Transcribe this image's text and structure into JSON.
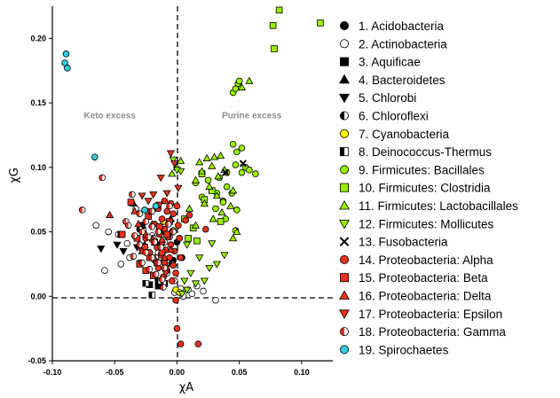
{
  "chart_data": {
    "type": "scatter",
    "xlabel": "χA",
    "ylabel": "χG",
    "xlim": [
      -0.1,
      0.125
    ],
    "ylim": [
      -0.05,
      0.225
    ],
    "xticks": [
      -0.1,
      -0.05,
      0.0,
      0.05,
      0.1
    ],
    "yticks": [
      -0.05,
      0.0,
      0.05,
      0.1,
      0.15,
      0.2
    ],
    "xtick_labels": [
      "-0.10",
      "-0.05",
      "0.00",
      "0.05",
      "0.10"
    ],
    "ytick_labels": [
      "-0.05",
      "0.00",
      "0.05",
      "0.10",
      "0.15",
      "0.20"
    ],
    "grid": false,
    "reference_lines": {
      "x": 0.0,
      "y": 0.0,
      "style": "dashed"
    },
    "annotations": [
      {
        "text": "Keto excess",
        "x": -0.054,
        "y": 0.138
      },
      {
        "text": "Purine excess",
        "x": 0.06,
        "y": 0.138
      }
    ],
    "legend_position": "right",
    "series": [
      {
        "name": "1. Acidobacteria",
        "marker": "circle",
        "fill": "#000000",
        "points": [
          [
            -0.003,
            0.028
          ],
          [
            -0.011,
            0.025
          ],
          [
            0.0,
            0.042
          ],
          [
            0.004,
            0.03
          ]
        ]
      },
      {
        "name": "2. Actinobacteria",
        "marker": "circle",
        "fill": "#ffffff",
        "points": [
          [
            -0.065,
            0.055
          ],
          [
            -0.055,
            0.05
          ],
          [
            -0.047,
            0.048
          ],
          [
            -0.04,
            0.041
          ],
          [
            -0.033,
            0.068
          ],
          [
            -0.027,
            0.052
          ],
          [
            -0.02,
            0.047
          ],
          [
            -0.045,
            0.025
          ],
          [
            -0.038,
            0.03
          ],
          [
            -0.03,
            0.026
          ],
          [
            -0.058,
            0.02
          ],
          [
            -0.012,
            0.025
          ],
          [
            -0.008,
            0.018
          ],
          [
            -0.002,
            0.012
          ],
          [
            0.003,
            0.006
          ],
          [
            0.009,
            0.005
          ],
          [
            0.016,
            0.008
          ],
          [
            0.021,
            0.004
          ],
          [
            0.031,
            -0.003
          ],
          [
            -0.015,
            0.034
          ],
          [
            0.005,
            0.0
          ],
          [
            -0.002,
            0.003
          ],
          [
            0.012,
            0.002
          ]
        ]
      },
      {
        "name": "3. Aquificae",
        "marker": "square",
        "fill": "#000000",
        "points": [
          [
            -0.045,
            0.048
          ],
          [
            -0.028,
            0.055
          ],
          [
            -0.022,
            0.009
          ],
          [
            -0.015,
            0.008
          ],
          [
            -0.01,
            0.01
          ]
        ]
      },
      {
        "name": "4. Bacteroidetes",
        "marker": "triangle-up",
        "fill": "#000000",
        "points": [
          [
            -0.035,
            0.072
          ],
          [
            -0.018,
            0.068
          ],
          [
            -0.013,
            0.05
          ],
          [
            -0.005,
            0.06
          ],
          [
            -0.026,
            0.04
          ]
        ]
      },
      {
        "name": "5. Chlorobi",
        "marker": "triangle-down",
        "fill": "#000000",
        "points": [
          [
            -0.061,
            0.037
          ],
          [
            -0.048,
            0.04
          ],
          [
            -0.043,
            0.035
          ],
          [
            -0.032,
            0.038
          ]
        ]
      },
      {
        "name": "6. Chloroflexi",
        "marker": "half-circle",
        "fill": "#000000",
        "points": [
          [
            -0.03,
            0.052
          ],
          [
            -0.019,
            0.045
          ],
          [
            -0.014,
            0.04
          ],
          [
            -0.01,
            0.042
          ],
          [
            -0.006,
            0.046
          ],
          [
            -0.017,
            0.03
          ],
          [
            -0.008,
            0.028
          ],
          [
            -0.004,
            0.025
          ]
        ]
      },
      {
        "name": "7. Cyanobacteria",
        "marker": "circle",
        "fill": "#ffff00",
        "points": [
          [
            -0.011,
            0.058
          ],
          [
            -0.003,
            0.051
          ],
          [
            -0.001,
            0.005
          ],
          [
            0.002,
            0.003
          ]
        ]
      },
      {
        "name": "8. Deinococcus-Thermus",
        "marker": "half-square",
        "fill": "#000000",
        "points": [
          [
            -0.025,
            0.01
          ],
          [
            -0.011,
            0.01
          ],
          [
            -0.02,
            0.001
          ],
          [
            -0.015,
            0.012
          ]
        ]
      },
      {
        "name": "9. Firmicutes: Bacillales",
        "marker": "circle",
        "fill": "#99ee00",
        "points": [
          [
            0.045,
            0.158
          ],
          [
            0.047,
            0.161
          ],
          [
            0.049,
            0.165
          ],
          [
            0.05,
            0.167
          ],
          [
            0.045,
            0.118
          ],
          [
            0.052,
            0.115
          ],
          [
            0.048,
            0.112
          ],
          [
            0.055,
            0.1
          ],
          [
            0.047,
            0.102
          ],
          [
            0.052,
            0.096
          ],
          [
            0.058,
            0.098
          ],
          [
            0.063,
            0.095
          ],
          [
            0.04,
            0.096
          ],
          [
            0.034,
            0.092
          ],
          [
            0.04,
            0.085
          ],
          [
            0.032,
            0.08
          ],
          [
            0.044,
            0.08
          ],
          [
            0.037,
            0.074
          ],
          [
            0.031,
            0.068
          ],
          [
            0.048,
            0.067
          ],
          [
            0.039,
            0.06
          ],
          [
            0.047,
            0.051
          ],
          [
            0.02,
            0.095
          ],
          [
            0.015,
            0.088
          ],
          [
            0.025,
            0.09
          ],
          [
            0.02,
            0.077
          ],
          [
            0.037,
            0.073
          ]
        ]
      },
      {
        "name": "10. Firmicutes: Clostridia",
        "marker": "square",
        "fill": "#99ee00",
        "points": [
          [
            0.082,
            0.222
          ],
          [
            0.077,
            0.21
          ],
          [
            0.078,
            0.192
          ],
          [
            0.115,
            0.212
          ],
          [
            0.02,
            0.095
          ],
          [
            0.013,
            0.053
          ],
          [
            0.028,
            0.082
          ],
          [
            0.035,
            0.058
          ],
          [
            0.009,
            0.045
          ],
          [
            0.022,
            0.075
          ],
          [
            0.006,
            0.06
          ],
          [
            0.016,
            0.043
          ]
        ]
      },
      {
        "name": "11. Firmicutes: Lactobacillales",
        "marker": "triangle-up",
        "fill": "#99ee00",
        "points": [
          [
            0.058,
            0.167
          ],
          [
            0.052,
            0.162
          ],
          [
            0.035,
            0.109
          ],
          [
            0.03,
            0.108
          ],
          [
            0.024,
            0.107
          ],
          [
            0.018,
            0.104
          ],
          [
            0.028,
            0.101
          ],
          [
            0.038,
            0.098
          ],
          [
            0.02,
            0.097
          ],
          [
            0.033,
            0.093
          ],
          [
            0.015,
            0.09
          ],
          [
            0.026,
            0.085
          ],
          [
            0.045,
            0.082
          ],
          [
            0.032,
            0.078
          ],
          [
            0.022,
            0.072
          ],
          [
            0.043,
            0.07
          ],
          [
            0.01,
            0.068
          ],
          [
            0.036,
            0.065
          ],
          [
            0.029,
            0.06
          ],
          [
            0.015,
            0.055
          ],
          [
            0.048,
            0.05
          ],
          [
            0.045,
            0.045
          ],
          [
            0.0,
            0.1
          ],
          [
            0.003,
            0.105
          ],
          [
            -0.004,
            0.095
          ]
        ]
      },
      {
        "name": "12. Firmicutes: Mollicutes",
        "marker": "triangle-down",
        "fill": "#99ee00",
        "points": [
          [
            0.003,
            0.097
          ],
          [
            0.0,
            0.098
          ],
          [
            -0.003,
            0.106
          ],
          [
            0.008,
            0.04
          ],
          [
            0.018,
            0.03
          ],
          [
            0.026,
            0.022
          ],
          [
            0.022,
            0.012
          ],
          [
            0.015,
            0.01
          ],
          [
            0.008,
            0.005
          ],
          [
            0.004,
            0.002
          ],
          [
            0.028,
            0.041
          ],
          [
            0.038,
            0.032
          ],
          [
            0.032,
            0.025
          ],
          [
            0.011,
            0.018
          ],
          [
            0.006,
            0.012
          ]
        ]
      },
      {
        "name": "13. Fusobacteria",
        "marker": "cross",
        "fill": "#000000",
        "points": [
          [
            0.053,
            0.103
          ],
          [
            0.039,
            0.096
          ]
        ]
      },
      {
        "name": "14. Proteobacteria: Alpha",
        "marker": "circle",
        "fill": "#e8321e",
        "points": [
          [
            -0.01,
            0.074
          ],
          [
            -0.005,
            0.072
          ],
          [
            0.0,
            0.07
          ],
          [
            -0.015,
            0.068
          ],
          [
            -0.008,
            0.066
          ],
          [
            -0.003,
            0.064
          ],
          [
            -0.012,
            0.06
          ],
          [
            -0.006,
            0.058
          ],
          [
            0.001,
            0.055
          ],
          [
            -0.018,
            0.056
          ],
          [
            -0.01,
            0.052
          ],
          [
            -0.004,
            0.05
          ],
          [
            -0.014,
            0.048
          ],
          [
            -0.007,
            0.046
          ],
          [
            0.002,
            0.045
          ],
          [
            -0.02,
            0.044
          ],
          [
            -0.012,
            0.042
          ],
          [
            -0.005,
            0.04
          ],
          [
            -0.016,
            0.038
          ],
          [
            -0.009,
            0.036
          ],
          [
            -0.002,
            0.035
          ],
          [
            -0.022,
            0.034
          ],
          [
            -0.013,
            0.032
          ],
          [
            -0.006,
            0.03
          ],
          [
            0.003,
            0.03
          ],
          [
            -0.018,
            0.028
          ],
          [
            -0.01,
            0.026
          ],
          [
            -0.003,
            0.024
          ],
          [
            -0.015,
            0.022
          ],
          [
            -0.008,
            0.02
          ],
          [
            -0.001,
            0.018
          ],
          [
            -0.011,
            0.015
          ],
          [
            -0.004,
            0.012
          ],
          [
            -0.001,
            -0.003
          ],
          [
            0.023,
            0.052
          ],
          [
            0.007,
            0.059
          ],
          [
            0.01,
            0.063
          ],
          [
            0.017,
            -0.037
          ],
          [
            0.003,
            -0.037
          ],
          [
            0.0,
            -0.025
          ],
          [
            -0.025,
            0.045
          ],
          [
            -0.028,
            0.036
          ]
        ]
      },
      {
        "name": "15. Proteobacteria: Beta",
        "marker": "square",
        "fill": "#e8321e",
        "points": [
          [
            -0.037,
            0.073
          ],
          [
            -0.023,
            0.062
          ],
          [
            -0.014,
            0.054
          ],
          [
            -0.008,
            0.048
          ],
          [
            -0.018,
            0.042
          ],
          [
            -0.026,
            0.038
          ],
          [
            -0.012,
            0.034
          ],
          [
            -0.022,
            0.03
          ],
          [
            -0.016,
            0.026
          ],
          [
            -0.009,
            0.022
          ],
          [
            -0.025,
            0.02
          ],
          [
            -0.019,
            0.016
          ],
          [
            -0.006,
            0.058
          ],
          [
            -0.03,
            0.025
          ],
          [
            -0.044,
            0.048
          ],
          [
            -0.032,
            0.045
          ]
        ]
      },
      {
        "name": "16. Proteobacteria: Delta",
        "marker": "triangle-up",
        "fill": "#e8321e",
        "points": [
          [
            -0.054,
            0.063
          ],
          [
            -0.034,
            0.066
          ],
          [
            -0.02,
            0.056
          ],
          [
            -0.025,
            0.048
          ],
          [
            -0.012,
            0.044
          ],
          [
            -0.005,
            0.036
          ],
          [
            -0.028,
            0.035
          ],
          [
            -0.01,
            0.03
          ],
          [
            -0.031,
            0.056
          ]
        ]
      },
      {
        "name": "17. Proteobacteria: Epsilon",
        "marker": "triangle-down",
        "fill": "#e8321e",
        "points": [
          [
            -0.005,
            0.111
          ],
          [
            -0.002,
            0.103
          ],
          [
            -0.013,
            0.092
          ],
          [
            -0.019,
            0.079
          ],
          [
            -0.014,
            0.071
          ],
          [
            -0.023,
            0.074
          ],
          [
            -0.008,
            0.08
          ],
          [
            -0.028,
            0.078
          ],
          [
            0.001,
            0.084
          ],
          [
            -0.022,
            0.066
          ],
          [
            -0.009,
            0.018
          ]
        ]
      },
      {
        "name": "18. Proteobacteria: Gamma",
        "marker": "half-circle",
        "fill": "#e8321e",
        "points": [
          [
            -0.076,
            0.067
          ],
          [
            -0.06,
            0.092
          ],
          [
            -0.041,
            0.058
          ],
          [
            -0.036,
            0.079
          ],
          [
            -0.03,
            0.064
          ],
          [
            -0.025,
            0.058
          ],
          [
            -0.02,
            0.054
          ],
          [
            -0.015,
            0.05
          ],
          [
            -0.028,
            0.05
          ],
          [
            -0.023,
            0.046
          ],
          [
            -0.018,
            0.042
          ],
          [
            -0.013,
            0.038
          ],
          [
            -0.03,
            0.04
          ],
          [
            -0.025,
            0.034
          ],
          [
            -0.02,
            0.03
          ],
          [
            -0.015,
            0.026
          ],
          [
            -0.01,
            0.022
          ],
          [
            -0.028,
            0.026
          ],
          [
            -0.022,
            0.021
          ],
          [
            -0.017,
            0.017
          ],
          [
            -0.012,
            0.013
          ],
          [
            -0.007,
            0.056
          ],
          [
            -0.003,
            0.05
          ],
          [
            -0.039,
            0.055
          ],
          [
            -0.034,
            0.047
          ],
          [
            -0.035,
            0.031
          ],
          [
            -0.02,
            0.066
          ],
          [
            -0.006,
            0.07
          ],
          [
            -0.011,
            0.007
          ]
        ]
      },
      {
        "name": "19. Spirochaetes",
        "marker": "circle",
        "fill": "#33ccdd",
        "points": [
          [
            -0.089,
            0.188
          ],
          [
            -0.09,
            0.181
          ],
          [
            -0.088,
            0.177
          ],
          [
            -0.066,
            0.108
          ],
          [
            -0.017,
            0.07
          ],
          [
            -0.026,
            0.067
          ]
        ]
      }
    ]
  }
}
